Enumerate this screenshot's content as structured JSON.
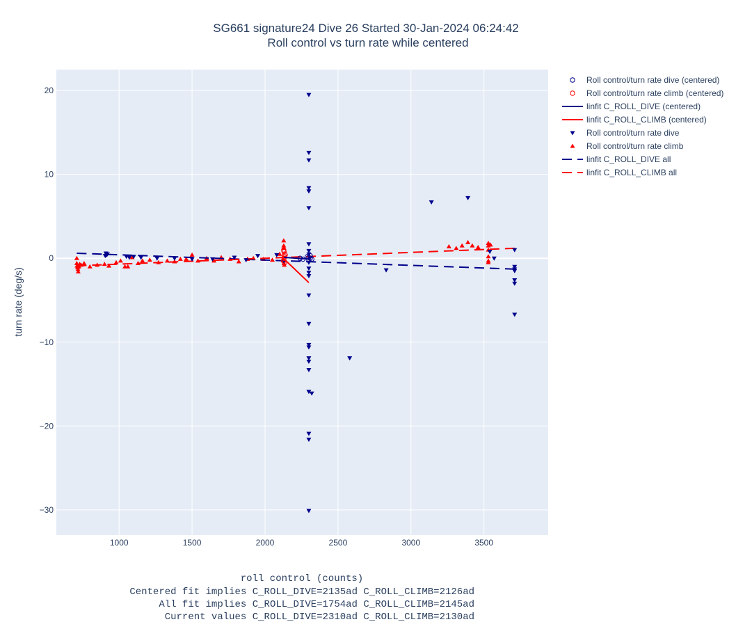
{
  "chart_data": {
    "type": "scatter",
    "title": "SG661 signature24 Dive 26 Started 30-Jan-2024 06:24:42",
    "subtitle": "Roll control vs turn rate while centered",
    "xlabel": "roll control (counts)",
    "xlabel_notes": [
      "Centered fit implies C_ROLL_DIVE=2135ad C_ROLL_CLIMB=2126ad",
      "All fit implies C_ROLL_DIVE=1754ad C_ROLL_CLIMB=2145ad",
      "Current values C_ROLL_DIVE=2310ad C_ROLL_CLIMB=2130ad"
    ],
    "ylabel": "turn rate (deg/s)",
    "xlim": [
      570,
      3940
    ],
    "ylim": [
      -33,
      22.5
    ],
    "xticks": [
      1000,
      1500,
      2000,
      2500,
      3000,
      3500
    ],
    "yticks": [
      20,
      10,
      0,
      -10,
      -20,
      -30
    ],
    "xtick_labels": [
      "1000",
      "1500",
      "2000",
      "2500",
      "3000",
      "3500"
    ],
    "ytick_labels": [
      "20",
      "10",
      "0",
      "−10",
      "−20",
      "−30"
    ],
    "grid": true,
    "legend_position": "right",
    "colors": {
      "dive": "#00008b",
      "climb": "#ff0000",
      "plot_bg": "#e5ecf6",
      "grid": "#ffffff"
    },
    "series": [
      {
        "name": "Roll control/turn rate dive (centered)",
        "marker": "circle-open",
        "color": "#00008b",
        "points": [
          [
            2290,
            0.2
          ],
          [
            2300,
            0.1
          ],
          [
            2310,
            0.0
          ],
          [
            2320,
            -0.1
          ],
          [
            2260,
            -0.1
          ],
          [
            2240,
            0.0
          ],
          [
            2300,
            -0.2
          ],
          [
            2310,
            0.3
          ]
        ]
      },
      {
        "name": "Roll control/turn rate climb (centered)",
        "marker": "circle-open",
        "color": "#ff0000",
        "points": [
          [
            2130,
            0.8
          ],
          [
            2135,
            0.5
          ],
          [
            2128,
            1.0
          ],
          [
            2132,
            0.2
          ],
          [
            2126,
            -0.3
          ],
          [
            2134,
            -0.5
          ],
          [
            2130,
            0.0
          ],
          [
            2138,
            0.4
          ]
        ]
      },
      {
        "name": "linfit C_ROLL_DIVE (centered)",
        "mode": "line",
        "dash": "solid",
        "color": "#00008b",
        "points": [
          [
            2130,
            0.1
          ],
          [
            2310,
            -0.1
          ]
        ]
      },
      {
        "name": "linfit C_ROLL_CLIMB (centered)",
        "mode": "line",
        "dash": "solid",
        "color": "#ff0000",
        "points": [
          [
            2125,
            0.0
          ],
          [
            2300,
            -2.9
          ]
        ]
      },
      {
        "name": "Roll control/turn rate dive",
        "marker": "triangle-down",
        "color": "#00008b",
        "points": [
          [
            910,
            0.6
          ],
          [
            915,
            0.4
          ],
          [
            920,
            0.5
          ],
          [
            905,
            0.3
          ],
          [
            1050,
            0.2
          ],
          [
            1070,
            0.1
          ],
          [
            1100,
            0.2
          ],
          [
            1150,
            0.1
          ],
          [
            1260,
            0.0
          ],
          [
            1380,
            0.0
          ],
          [
            1500,
            -0.1
          ],
          [
            1640,
            -0.1
          ],
          [
            1790,
            0.1
          ],
          [
            1870,
            -0.2
          ],
          [
            1950,
            0.3
          ],
          [
            2080,
            0.4
          ],
          [
            2130,
            -0.4
          ],
          [
            2300,
            19.5
          ],
          [
            2300,
            12.6
          ],
          [
            2300,
            11.7
          ],
          [
            2300,
            8.4
          ],
          [
            2300,
            8.0
          ],
          [
            2300,
            6.0
          ],
          [
            2300,
            1.7
          ],
          [
            2300,
            0.9
          ],
          [
            2300,
            0.5
          ],
          [
            2300,
            -0.5
          ],
          [
            2300,
            -1.2
          ],
          [
            2300,
            -1.7
          ],
          [
            2300,
            -2.1
          ],
          [
            2300,
            -4.4
          ],
          [
            2300,
            -7.8
          ],
          [
            2300,
            -10.3
          ],
          [
            2300,
            -10.6
          ],
          [
            2300,
            -11.9
          ],
          [
            2300,
            -12.3
          ],
          [
            2300,
            -13.3
          ],
          [
            2300,
            -15.9
          ],
          [
            2320,
            -16.1
          ],
          [
            2300,
            -20.9
          ],
          [
            2300,
            -21.6
          ],
          [
            2300,
            -30.1
          ],
          [
            2580,
            -11.9
          ],
          [
            2830,
            -1.4
          ],
          [
            3140,
            6.7
          ],
          [
            3390,
            7.2
          ],
          [
            3540,
            0.8
          ],
          [
            3570,
            0.0
          ],
          [
            3710,
            1.0
          ],
          [
            3710,
            -1.0
          ],
          [
            3710,
            -1.3
          ],
          [
            3710,
            -1.5
          ],
          [
            3710,
            -2.6
          ],
          [
            3710,
            -3.0
          ],
          [
            3710,
            -6.7
          ]
        ]
      },
      {
        "name": "Roll control/turn rate climb",
        "marker": "triangle-up",
        "color": "#ff0000",
        "points": [
          [
            710,
            0.0
          ],
          [
            710,
            -0.6
          ],
          [
            712,
            -0.9
          ],
          [
            715,
            -1.1
          ],
          [
            718,
            -1.3
          ],
          [
            720,
            -1.6
          ],
          [
            725,
            -1.0
          ],
          [
            730,
            -0.7
          ],
          [
            740,
            -0.8
          ],
          [
            760,
            -0.6
          ],
          [
            800,
            -1.0
          ],
          [
            850,
            -0.8
          ],
          [
            900,
            -0.7
          ],
          [
            930,
            -0.9
          ],
          [
            980,
            -0.5
          ],
          [
            1010,
            -0.3
          ],
          [
            1040,
            -1.0
          ],
          [
            1060,
            -1.0
          ],
          [
            1090,
            0.1
          ],
          [
            1130,
            -0.6
          ],
          [
            1160,
            -0.3
          ],
          [
            1210,
            -0.2
          ],
          [
            1270,
            -0.5
          ],
          [
            1330,
            -0.3
          ],
          [
            1380,
            -0.4
          ],
          [
            1420,
            -0.1
          ],
          [
            1460,
            -0.1
          ],
          [
            1500,
            0.4
          ],
          [
            1540,
            -0.3
          ],
          [
            1600,
            0.0
          ],
          [
            1650,
            -0.3
          ],
          [
            1700,
            0.1
          ],
          [
            1760,
            -0.1
          ],
          [
            1820,
            -0.4
          ],
          [
            1880,
            -0.1
          ],
          [
            1920,
            0.0
          ],
          [
            1990,
            -0.1
          ],
          [
            2050,
            -0.2
          ],
          [
            2100,
            0.5
          ],
          [
            2128,
            2.1
          ],
          [
            2128,
            1.5
          ],
          [
            2130,
            1.2
          ],
          [
            2130,
            -0.3
          ],
          [
            2130,
            -0.6
          ],
          [
            2132,
            -0.8
          ],
          [
            2125,
            -0.2
          ],
          [
            3260,
            1.4
          ],
          [
            3310,
            1.2
          ],
          [
            3350,
            1.5
          ],
          [
            3390,
            1.9
          ],
          [
            3420,
            1.5
          ],
          [
            3460,
            1.3
          ],
          [
            3530,
            1.8
          ],
          [
            3530,
            1.5
          ],
          [
            3530,
            1.0
          ],
          [
            3530,
            0.2
          ],
          [
            3530,
            -0.3
          ],
          [
            3530,
            -0.5
          ],
          [
            3545,
            1.6
          ]
        ]
      },
      {
        "name": "linfit C_ROLL_DIVE all",
        "mode": "line",
        "dash": "dash",
        "color": "#00008b",
        "points": [
          [
            710,
            0.6
          ],
          [
            3720,
            -1.3
          ]
        ]
      },
      {
        "name": "linfit C_ROLL_CLIMB all",
        "mode": "line",
        "dash": "dash",
        "color": "#ff0000",
        "points": [
          [
            710,
            -0.9
          ],
          [
            3720,
            1.2
          ]
        ]
      }
    ]
  }
}
